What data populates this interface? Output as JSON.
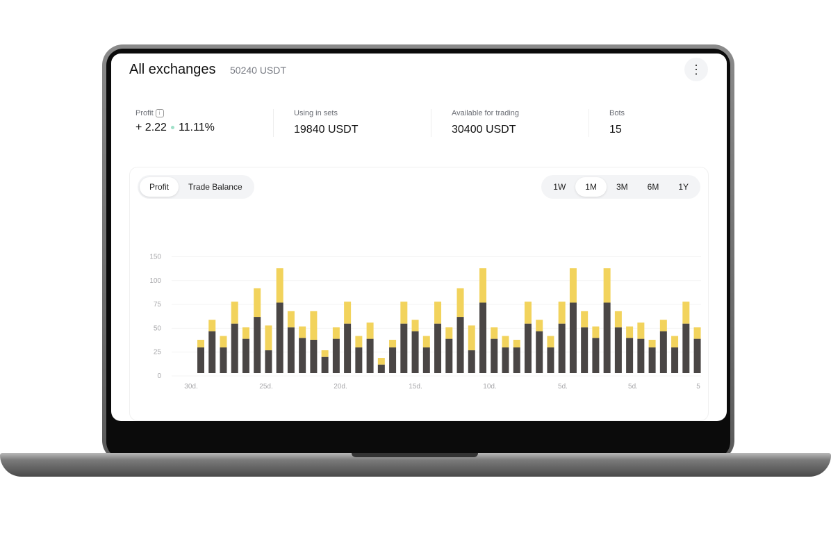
{
  "header": {
    "title": "All exchanges",
    "total": "50240 USDT",
    "more_icon": "more-vertical-icon"
  },
  "stats": [
    {
      "label": "Profit",
      "value": "+ 2.22",
      "percent": "11.11%"
    },
    {
      "label": "Using in sets",
      "value": "19840 USDT"
    },
    {
      "label": "Available for trading",
      "value": "30400 USDT"
    },
    {
      "label": "Bots",
      "value": "15"
    }
  ],
  "chart_tabs": [
    {
      "label": "Profit",
      "active": true
    },
    {
      "label": "Trade Balance",
      "active": false
    }
  ],
  "ranges": [
    {
      "label": "1W"
    },
    {
      "label": "1M",
      "active": true
    },
    {
      "label": "3M"
    },
    {
      "label": "6M"
    },
    {
      "label": "1Y"
    }
  ],
  "colors": {
    "dark": "#4a4645",
    "yellow": "#f2d35c",
    "profit_green": "#1eb784"
  },
  "chart_data": {
    "type": "bar",
    "stacked": true,
    "y_tick_labels": [
      "0",
      "25",
      "50",
      "75",
      "100",
      "150"
    ],
    "x_tick_labels": [
      "30d.",
      "25d.",
      "20d.",
      "15d.",
      "10d.",
      "5d.",
      "5d.",
      "5"
    ],
    "grid": true,
    "series": [
      {
        "color": "#4a4645",
        "values": [
          27,
          44,
          27,
          52,
          36,
          59,
          24,
          74,
          48,
          37,
          35,
          17,
          36,
          52,
          27,
          36,
          9,
          27,
          52,
          44,
          27,
          52,
          36,
          59,
          24,
          74,
          36,
          27,
          27,
          52,
          44,
          27,
          52,
          74,
          48,
          37,
          74,
          48,
          37,
          36,
          27,
          44,
          27,
          52,
          36
        ]
      },
      {
        "color": "#f2d35c",
        "values": [
          8,
          12,
          12,
          23,
          12,
          30,
          26,
          36,
          17,
          12,
          30,
          7,
          12,
          23,
          12,
          17,
          7,
          8,
          23,
          12,
          12,
          23,
          12,
          30,
          26,
          36,
          12,
          12,
          8,
          23,
          12,
          12,
          23,
          36,
          17,
          12,
          36,
          17,
          12,
          17,
          8,
          12,
          12,
          23,
          12
        ]
      }
    ]
  }
}
